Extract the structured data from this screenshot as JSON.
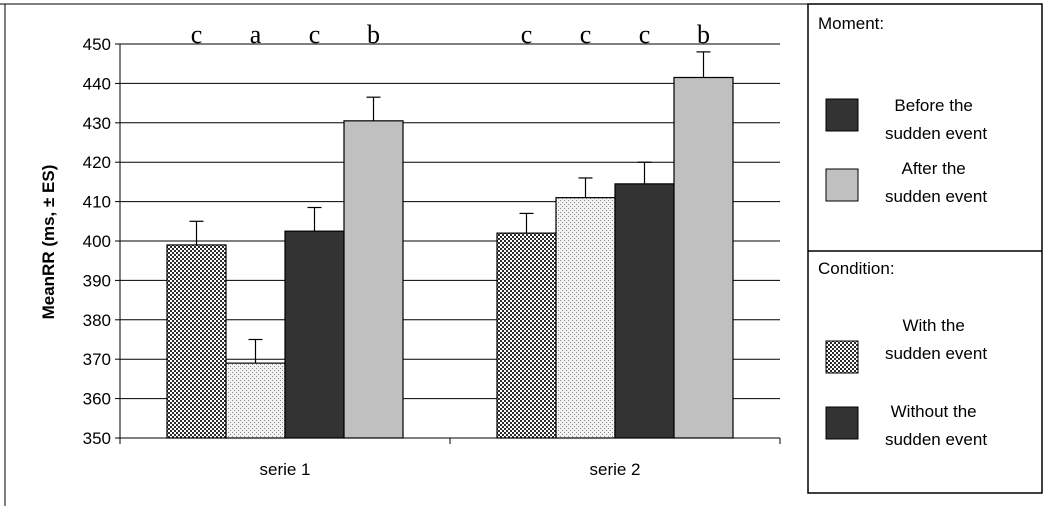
{
  "chart_data": {
    "type": "bar",
    "ylabel": "MeanRR (ms, ± ES)",
    "ylim": [
      350,
      450
    ],
    "yticks": [
      350,
      360,
      370,
      380,
      390,
      400,
      410,
      420,
      430,
      440,
      450
    ],
    "grid": true,
    "categories": [
      "serie 1",
      "serie 2"
    ],
    "bars": [
      {
        "category": "serie 1",
        "value": 399,
        "error": 6,
        "fill": "checker",
        "letter": "c"
      },
      {
        "category": "serie 1",
        "value": 369,
        "error": 6,
        "fill": "dots",
        "letter": "a"
      },
      {
        "category": "serie 1",
        "value": 402.5,
        "error": 6,
        "fill": "dark",
        "letter": "c"
      },
      {
        "category": "serie 1",
        "value": 430.5,
        "error": 6,
        "fill": "light",
        "letter": "b"
      },
      {
        "category": "serie 2",
        "value": 402,
        "error": 5,
        "fill": "checker",
        "letter": "c"
      },
      {
        "category": "serie 2",
        "value": 411,
        "error": 5,
        "fill": "dots",
        "letter": "c"
      },
      {
        "category": "serie 2",
        "value": 414.5,
        "error": 5.5,
        "fill": "dark",
        "letter": "c"
      },
      {
        "category": "serie 2",
        "value": 441.5,
        "error": 6.5,
        "fill": "light",
        "letter": "b"
      }
    ],
    "legend": {
      "placement": "right",
      "groups": [
        {
          "heading": "Moment:",
          "items": [
            {
              "label": [
                "Before the",
                "sudden event"
              ],
              "fill": "dark"
            },
            {
              "label": [
                "After the",
                "sudden event"
              ],
              "fill": "light"
            }
          ]
        },
        {
          "heading": "Condition:",
          "items": [
            {
              "label": [
                "With the",
                "sudden event"
              ],
              "fill": "checker"
            },
            {
              "label": [
                "Without the",
                "sudden event"
              ],
              "fill": "dark"
            }
          ]
        }
      ]
    },
    "colors": {
      "dark": "#333333",
      "light": "#c0c0c0",
      "grid": "#000000"
    }
  }
}
